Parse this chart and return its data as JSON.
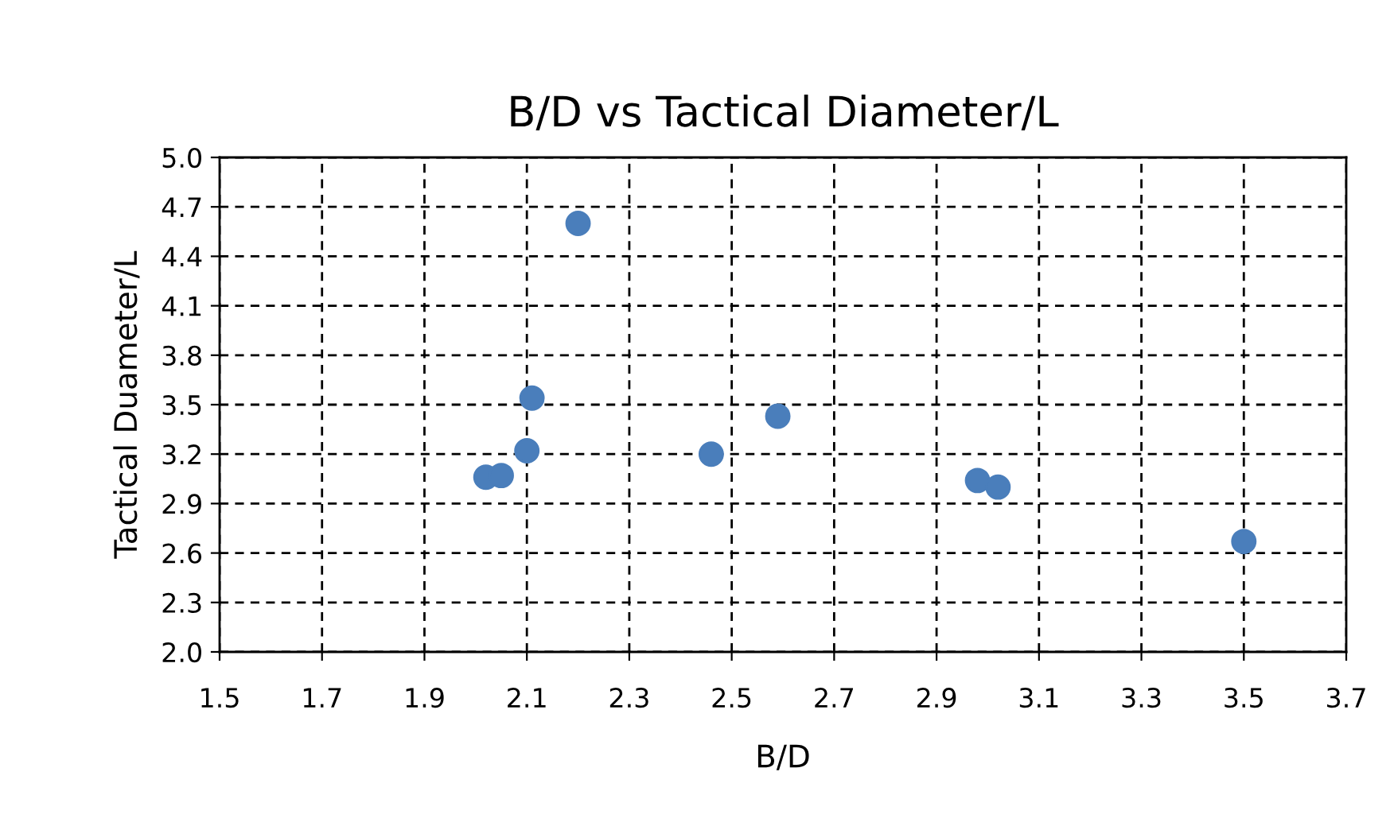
{
  "chart_data": {
    "type": "scatter",
    "title": "B/D vs Tactical Diameter/L",
    "xlabel": "B/D",
    "ylabel": "Tactical Duameter/L",
    "x": [
      2.02,
      2.05,
      2.11,
      2.1,
      2.2,
      2.46,
      2.59,
      2.98,
      3.02,
      3.5
    ],
    "series": [
      {
        "color": "#4a7ebb",
        "values": [
          3.06,
          3.07,
          3.54,
          3.22,
          4.6,
          3.2,
          3.43,
          3.04,
          3.0,
          2.67
        ]
      }
    ],
    "xlim": [
      1.5,
      3.7
    ],
    "xticks": [
      1.5,
      1.7,
      1.9,
      2.1,
      2.3,
      2.5,
      2.7,
      2.9,
      3.1,
      3.3,
      3.5,
      3.7
    ],
    "ylim": [
      2.0,
      5.0
    ],
    "yticks": [
      {
        "value": 2.0,
        "label": "2.0"
      },
      2.3,
      2.6,
      2.9,
      3.2,
      3.5,
      3.8,
      4.1,
      4.4,
      4.7,
      {
        "value": 5.0,
        "label": "5.0"
      }
    ],
    "grid": true,
    "marker": "circle",
    "legend": false
  }
}
